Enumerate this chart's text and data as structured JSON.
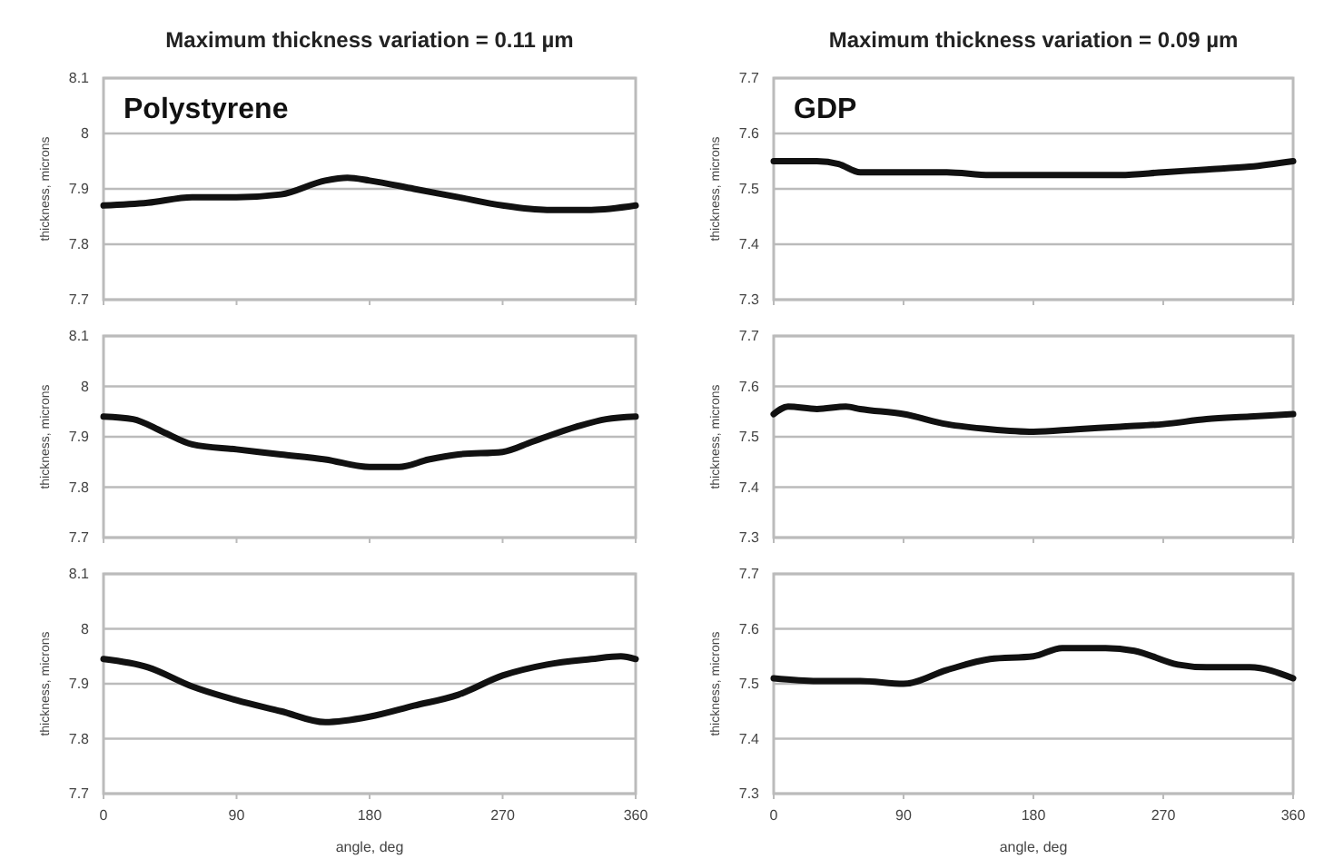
{
  "chart_data": [
    {
      "type": "line",
      "title": "Maximum thickness variation = 0.11 µm",
      "annotations": [
        "Polystyrene"
      ],
      "ylabel": "thickness, microns",
      "xlim": [
        0,
        360
      ],
      "xticks": [
        0,
        90,
        180,
        270,
        360
      ],
      "ylim": [
        7.7,
        8.1
      ],
      "yticks": [
        7.7,
        7.8,
        7.9,
        8,
        8.1
      ],
      "grid": "y",
      "tick_labels": "y",
      "x": [
        0,
        30,
        60,
        90,
        120,
        150,
        165,
        180,
        210,
        240,
        270,
        300,
        330,
        360
      ],
      "series": [
        {
          "color": "#111111",
          "values": [
            7.87,
            7.875,
            7.885,
            7.885,
            7.89,
            7.915,
            7.92,
            7.915,
            7.9,
            7.885,
            7.87,
            7.862,
            7.862,
            7.87
          ]
        }
      ]
    },
    {
      "type": "line",
      "title": "Maximum thickness variation = 0.09 µm",
      "annotations": [
        "GDP"
      ],
      "ylabel": "thickness, microns",
      "xlim": [
        0,
        360
      ],
      "xticks": [
        0,
        90,
        180,
        270,
        360
      ],
      "ylim": [
        7.3,
        7.7
      ],
      "yticks": [
        7.3,
        7.4,
        7.5,
        7.6,
        7.7
      ],
      "grid": "y",
      "tick_labels": "y",
      "x": [
        0,
        30,
        45,
        60,
        90,
        120,
        150,
        180,
        210,
        240,
        270,
        300,
        330,
        360
      ],
      "series": [
        {
          "color": "#111111",
          "values": [
            7.55,
            7.55,
            7.545,
            7.53,
            7.53,
            7.53,
            7.525,
            7.525,
            7.525,
            7.525,
            7.53,
            7.535,
            7.54,
            7.55
          ]
        }
      ]
    },
    {
      "type": "line",
      "ylabel": "thickness, microns",
      "xlim": [
        0,
        360
      ],
      "xticks": [
        0,
        90,
        180,
        270,
        360
      ],
      "ylim": [
        7.7,
        8.1
      ],
      "yticks": [
        7.7,
        7.8,
        7.9,
        8,
        8.1
      ],
      "grid": "y",
      "tick_labels": "y",
      "x": [
        0,
        20,
        40,
        60,
        90,
        120,
        150,
        180,
        200,
        220,
        240,
        270,
        290,
        320,
        340,
        360
      ],
      "series": [
        {
          "color": "#111111",
          "values": [
            7.94,
            7.935,
            7.91,
            7.885,
            7.875,
            7.865,
            7.855,
            7.84,
            7.84,
            7.855,
            7.865,
            7.87,
            7.89,
            7.92,
            7.935,
            7.94
          ]
        }
      ]
    },
    {
      "type": "line",
      "ylabel": "thickness, microns",
      "xlim": [
        0,
        360
      ],
      "xticks": [
        0,
        90,
        180,
        270,
        360
      ],
      "ylim": [
        7.3,
        7.7
      ],
      "yticks": [
        7.3,
        7.4,
        7.5,
        7.6,
        7.7
      ],
      "grid": "y",
      "tick_labels": "y",
      "x": [
        0,
        10,
        30,
        50,
        60,
        90,
        120,
        150,
        180,
        210,
        240,
        270,
        300,
        330,
        360
      ],
      "series": [
        {
          "color": "#111111",
          "values": [
            7.545,
            7.56,
            7.555,
            7.56,
            7.555,
            7.545,
            7.525,
            7.515,
            7.51,
            7.515,
            7.52,
            7.525,
            7.535,
            7.54,
            7.545
          ]
        }
      ]
    },
    {
      "type": "line",
      "xlabel": "angle, deg",
      "ylabel": "thickness, microns",
      "xlim": [
        0,
        360
      ],
      "xticks": [
        0,
        90,
        180,
        270,
        360
      ],
      "ylim": [
        7.7,
        8.1
      ],
      "yticks": [
        7.7,
        7.8,
        7.9,
        8,
        8.1
      ],
      "grid": "y",
      "x": [
        0,
        30,
        60,
        90,
        120,
        150,
        180,
        210,
        240,
        270,
        300,
        330,
        350,
        360
      ],
      "series": [
        {
          "color": "#111111",
          "values": [
            7.945,
            7.93,
            7.895,
            7.87,
            7.85,
            7.83,
            7.84,
            7.86,
            7.88,
            7.915,
            7.935,
            7.945,
            7.95,
            7.945
          ]
        }
      ]
    },
    {
      "type": "line",
      "xlabel": "angle, deg",
      "ylabel": "thickness, microns",
      "xlim": [
        0,
        360
      ],
      "xticks": [
        0,
        90,
        180,
        270,
        360
      ],
      "ylim": [
        7.3,
        7.7
      ],
      "yticks": [
        7.3,
        7.4,
        7.5,
        7.6,
        7.7
      ],
      "grid": "y",
      "x": [
        0,
        30,
        60,
        90,
        120,
        150,
        180,
        200,
        230,
        250,
        280,
        300,
        330,
        360
      ],
      "series": [
        {
          "color": "#111111",
          "values": [
            7.51,
            7.505,
            7.505,
            7.5,
            7.525,
            7.545,
            7.55,
            7.565,
            7.565,
            7.56,
            7.535,
            7.53,
            7.53,
            7.51
          ]
        }
      ]
    }
  ]
}
